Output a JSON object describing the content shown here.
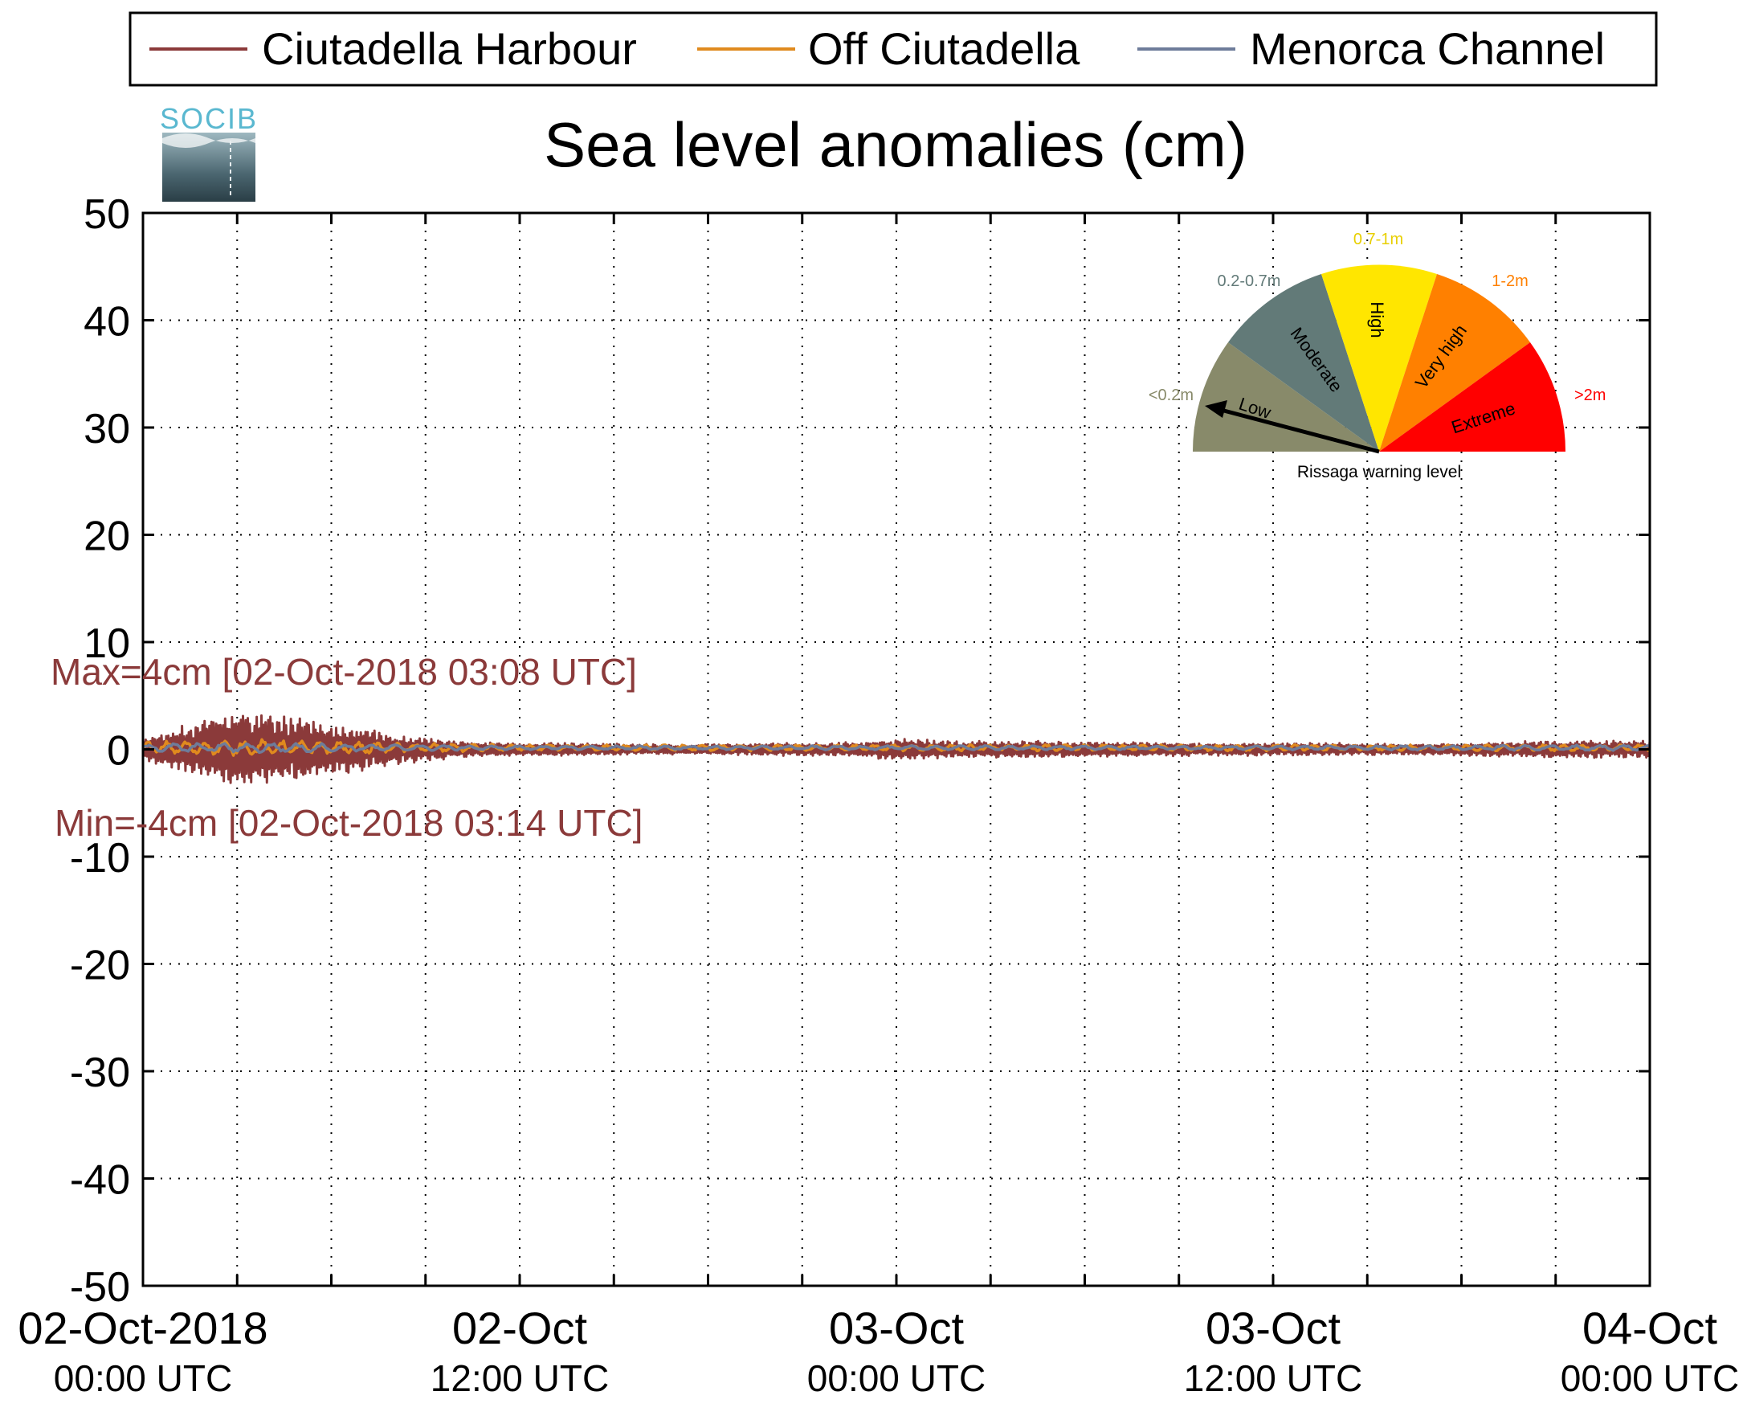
{
  "legend": {
    "entries": [
      {
        "name": "Ciutadella Harbour",
        "color": "#8B3A3A"
      },
      {
        "name": "Off Ciutadella",
        "color": "#E08A1E"
      },
      {
        "name": "Menorca Channel",
        "color": "#6E7C9A"
      }
    ]
  },
  "logo": {
    "text": "SOCIB"
  },
  "chart_data": {
    "type": "line",
    "title": "Sea level anomalies (cm)",
    "xlabel": "",
    "ylabel": "",
    "ylim": [
      -50,
      50
    ],
    "grid": true,
    "legend_position": "top",
    "x_range": [
      "2018-10-02 00:00",
      "2018-10-04 00:00"
    ],
    "yticks": [
      50,
      40,
      30,
      20,
      10,
      0,
      -10,
      -20,
      -30,
      -40,
      -50
    ],
    "xtick_count": 16,
    "xtick_labels": [
      {
        "line1": "02-Oct-2018",
        "line2": "00:00 UTC",
        "hours": 0
      },
      {
        "line1": "02-Oct",
        "line2": "12:00 UTC",
        "hours": 12
      },
      {
        "line1": "03-Oct",
        "line2": "00:00 UTC",
        "hours": 24
      },
      {
        "line1": "03-Oct",
        "line2": "12:00 UTC",
        "hours": 36
      },
      {
        "line1": "04-Oct",
        "line2": "00:00 UTC",
        "hours": 48
      }
    ],
    "series": [
      {
        "name": "Ciutadella Harbour",
        "color": "#8B3A3A",
        "envelope_hours": [
          0,
          1,
          2,
          3,
          4,
          5,
          6,
          7,
          8,
          10,
          12,
          14,
          16,
          18,
          20,
          22,
          24,
          26,
          28,
          30,
          32,
          34,
          36,
          38,
          40,
          42,
          44,
          46,
          48
        ],
        "envelope_cm": [
          1.0,
          2.0,
          3.0,
          4.0,
          3.5,
          3.0,
          2.5,
          2.0,
          1.5,
          0.8,
          0.6,
          0.6,
          0.5,
          0.5,
          0.6,
          0.6,
          1.0,
          0.8,
          0.8,
          0.7,
          0.7,
          0.6,
          0.6,
          0.6,
          0.5,
          0.6,
          0.8,
          0.8,
          0.8
        ]
      },
      {
        "name": "Off Ciutadella",
        "color": "#E08A1E",
        "envelope_hours": [
          0,
          4,
          8,
          12,
          24,
          36,
          48
        ],
        "envelope_cm": [
          0.6,
          0.8,
          0.5,
          0.3,
          0.3,
          0.3,
          0.3
        ]
      },
      {
        "name": "Menorca Channel",
        "color": "#6E7C9A",
        "envelope_hours": [
          0,
          4,
          8,
          12,
          24,
          36,
          48
        ],
        "envelope_cm": [
          0.4,
          0.5,
          0.3,
          0.2,
          0.2,
          0.2,
          0.3
        ]
      }
    ],
    "annotations": {
      "max": {
        "text": "Max=4cm [02-Oct-2018 03:08 UTC]",
        "value": 4
      },
      "min": {
        "text": "Min=-4cm [02-Oct-2018 03:14 UTC]",
        "value": -4
      }
    }
  },
  "gauge": {
    "caption": "Rissaga warning level",
    "needle_level": "Low",
    "segments": [
      {
        "name": "Low",
        "range": "<0.2m",
        "color": "#888A6A",
        "label_color": "#888A6A"
      },
      {
        "name": "Moderate",
        "range": "0.2-0.7m",
        "color": "#627A78",
        "label_color": "#627A78"
      },
      {
        "name": "High",
        "range": "0.7-1m",
        "color": "#FFE600",
        "label_color": "#E8CF00"
      },
      {
        "name": "Very high",
        "range": "1-2m",
        "color": "#FF8000",
        "label_color": "#FF8000"
      },
      {
        "name": "Extreme",
        "range": ">2m",
        "color": "#FF0000",
        "label_color": "#FF0000"
      }
    ]
  }
}
